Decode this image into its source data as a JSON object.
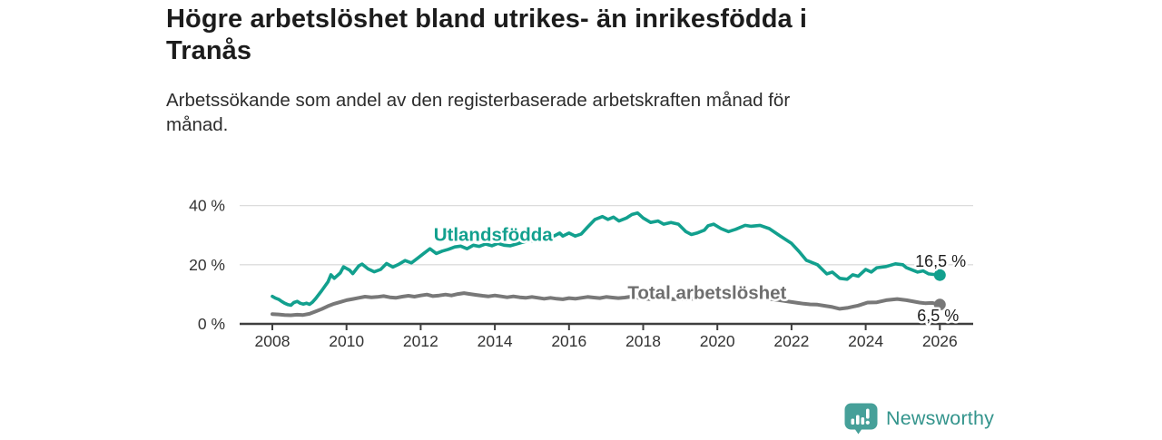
{
  "header": {
    "title_line1": "Högre arbetslöshet bland utrikes- än inrikesfödda i",
    "title_line2": "Tranås",
    "subtitle_line1": "Arbetssökande som andel av den registerbaserade arbetskraften månad för",
    "subtitle_line2": "månad."
  },
  "footer": {
    "logo_text": "Newsworthy",
    "logo_color": "#33948c",
    "logo_icon": "bar-chart-speech-bubble-icon",
    "logo_icon_color": "#46a099"
  },
  "chart_data": {
    "type": "line",
    "title": "Högre arbetslöshet bland utrikes- än inrikesfödda i Tranås",
    "subtitle": "Arbetssökande som andel av den registerbaserade arbetskraften månad för månad.",
    "xlabel": "",
    "ylabel": "",
    "xlim": [
      2007.1,
      2026.9
    ],
    "ylim": [
      0,
      42
    ],
    "grid": "horizontal",
    "x_ticks": [
      2008,
      2010,
      2012,
      2014,
      2016,
      2018,
      2020,
      2022,
      2024,
      2026
    ],
    "y_ticks": [
      {
        "value": 0,
        "label": "0 %"
      },
      {
        "value": 20,
        "label": "20 %"
      },
      {
        "value": 40,
        "label": "40 %"
      }
    ],
    "colors": {
      "grid": "#dcdcdc",
      "axis": "#3f3f3f",
      "tick_label": "#333333",
      "value_label": "#1d1d1d"
    },
    "series": [
      {
        "name": "Total arbetslöshet",
        "color": "#787878",
        "label_color": "#6e6e6e",
        "end_label": "6,5 %",
        "end_value": 6.5,
        "label_anchor": {
          "x": 2017.58,
          "y": 8.4,
          "anchor": "start"
        },
        "end_label_anchor": {
          "x": 2025.95,
          "y": 0.9,
          "anchor": "middle"
        },
        "points": [
          [
            2008.0,
            3.3
          ],
          [
            2008.17,
            3.2
          ],
          [
            2008.33,
            3.0
          ],
          [
            2008.5,
            2.9
          ],
          [
            2008.67,
            3.1
          ],
          [
            2008.83,
            3.0
          ],
          [
            2009.0,
            3.4
          ],
          [
            2009.17,
            4.2
          ],
          [
            2009.33,
            5.0
          ],
          [
            2009.5,
            6.0
          ],
          [
            2009.67,
            6.8
          ],
          [
            2009.83,
            7.4
          ],
          [
            2010.0,
            8.0
          ],
          [
            2010.17,
            8.4
          ],
          [
            2010.33,
            8.8
          ],
          [
            2010.5,
            9.2
          ],
          [
            2010.67,
            9.0
          ],
          [
            2010.83,
            9.1
          ],
          [
            2011.0,
            9.4
          ],
          [
            2011.17,
            9.0
          ],
          [
            2011.33,
            8.8
          ],
          [
            2011.5,
            9.2
          ],
          [
            2011.67,
            9.5
          ],
          [
            2011.83,
            9.2
          ],
          [
            2012.0,
            9.6
          ],
          [
            2012.17,
            9.9
          ],
          [
            2012.33,
            9.4
          ],
          [
            2012.5,
            9.6
          ],
          [
            2012.67,
            9.9
          ],
          [
            2012.83,
            9.6
          ],
          [
            2013.0,
            10.1
          ],
          [
            2013.17,
            10.4
          ],
          [
            2013.33,
            10.1
          ],
          [
            2013.5,
            9.8
          ],
          [
            2013.67,
            9.5
          ],
          [
            2013.83,
            9.3
          ],
          [
            2014.0,
            9.6
          ],
          [
            2014.17,
            9.3
          ],
          [
            2014.33,
            9.0
          ],
          [
            2014.5,
            9.3
          ],
          [
            2014.67,
            9.0
          ],
          [
            2014.83,
            8.8
          ],
          [
            2015.0,
            9.1
          ],
          [
            2015.17,
            8.8
          ],
          [
            2015.33,
            8.5
          ],
          [
            2015.5,
            8.8
          ],
          [
            2015.67,
            8.5
          ],
          [
            2015.83,
            8.3
          ],
          [
            2016.0,
            8.7
          ],
          [
            2016.17,
            8.5
          ],
          [
            2016.33,
            8.8
          ],
          [
            2016.5,
            9.1
          ],
          [
            2016.67,
            8.9
          ],
          [
            2016.83,
            8.7
          ],
          [
            2017.0,
            9.1
          ],
          [
            2017.17,
            8.9
          ],
          [
            2017.33,
            8.7
          ],
          [
            2017.5,
            8.9
          ],
          [
            2017.67,
            9.2
          ],
          [
            2017.83,
            8.9
          ],
          [
            2018.0,
            8.6
          ],
          [
            2018.17,
            8.4
          ],
          [
            2018.33,
            8.6
          ],
          [
            2018.5,
            8.9
          ],
          [
            2018.67,
            8.6
          ],
          [
            2018.83,
            8.3
          ],
          [
            2019.0,
            8.6
          ],
          [
            2019.17,
            8.3
          ],
          [
            2019.33,
            8.5
          ],
          [
            2019.5,
            8.8
          ],
          [
            2019.67,
            9.1
          ],
          [
            2019.83,
            9.5
          ],
          [
            2020.0,
            9.2
          ],
          [
            2020.17,
            9.5
          ],
          [
            2020.33,
            9.8
          ],
          [
            2020.5,
            10.0
          ],
          [
            2020.67,
            9.7
          ],
          [
            2020.83,
            9.5
          ],
          [
            2021.0,
            9.2
          ],
          [
            2021.17,
            8.9
          ],
          [
            2021.33,
            8.6
          ],
          [
            2021.5,
            8.3
          ],
          [
            2021.67,
            8.0
          ],
          [
            2021.83,
            7.7
          ],
          [
            2022.0,
            7.4
          ],
          [
            2022.17,
            7.1
          ],
          [
            2022.33,
            6.8
          ],
          [
            2022.5,
            6.6
          ],
          [
            2022.7,
            6.5
          ],
          [
            2022.9,
            6.1
          ],
          [
            2023.1,
            5.7
          ],
          [
            2023.3,
            5.1
          ],
          [
            2023.5,
            5.4
          ],
          [
            2023.65,
            5.8
          ],
          [
            2023.8,
            6.2
          ],
          [
            2024.05,
            7.2
          ],
          [
            2024.3,
            7.3
          ],
          [
            2024.55,
            8.0
          ],
          [
            2024.85,
            8.4
          ],
          [
            2025.1,
            8.0
          ],
          [
            2025.45,
            7.2
          ],
          [
            2025.6,
            7.0
          ],
          [
            2025.8,
            7.1
          ],
          [
            2026.0,
            6.5
          ]
        ]
      },
      {
        "name": "Utlandsfödda",
        "color": "#12a08e",
        "label_color": "#12a08e",
        "end_label": "16,5 %",
        "end_value": 16.5,
        "label_anchor": {
          "x": 2012.35,
          "y": 28.0,
          "anchor": "start"
        },
        "end_label_anchor": {
          "x": 2026.02,
          "y": 19.3,
          "anchor": "middle"
        },
        "points": [
          [
            2008.0,
            9.3
          ],
          [
            2008.08,
            8.7
          ],
          [
            2008.17,
            8.3
          ],
          [
            2008.25,
            7.6
          ],
          [
            2008.33,
            7.0
          ],
          [
            2008.42,
            6.5
          ],
          [
            2008.5,
            6.3
          ],
          [
            2008.58,
            7.2
          ],
          [
            2008.67,
            7.6
          ],
          [
            2008.75,
            7.0
          ],
          [
            2008.83,
            6.7
          ],
          [
            2008.92,
            7.0
          ],
          [
            2009.0,
            6.6
          ],
          [
            2009.08,
            7.3
          ],
          [
            2009.17,
            8.6
          ],
          [
            2009.33,
            11.2
          ],
          [
            2009.5,
            14.2
          ],
          [
            2009.58,
            16.6
          ],
          [
            2009.67,
            15.4
          ],
          [
            2009.83,
            17.2
          ],
          [
            2009.92,
            19.3
          ],
          [
            2010.08,
            18.2
          ],
          [
            2010.17,
            17.0
          ],
          [
            2010.33,
            19.6
          ],
          [
            2010.42,
            20.2
          ],
          [
            2010.58,
            18.6
          ],
          [
            2010.75,
            17.6
          ],
          [
            2010.92,
            18.4
          ],
          [
            2011.08,
            20.4
          ],
          [
            2011.25,
            19.2
          ],
          [
            2011.42,
            20.2
          ],
          [
            2011.58,
            21.4
          ],
          [
            2011.75,
            20.6
          ],
          [
            2011.92,
            22.2
          ],
          [
            2012.08,
            23.8
          ],
          [
            2012.25,
            25.4
          ],
          [
            2012.42,
            23.8
          ],
          [
            2012.58,
            24.6
          ],
          [
            2012.75,
            25.2
          ],
          [
            2012.92,
            26.0
          ],
          [
            2013.08,
            26.3
          ],
          [
            2013.25,
            25.4
          ],
          [
            2013.42,
            26.6
          ],
          [
            2013.58,
            26.2
          ],
          [
            2013.75,
            27.0
          ],
          [
            2013.92,
            26.4
          ],
          [
            2014.08,
            27.2
          ],
          [
            2014.25,
            26.6
          ],
          [
            2014.42,
            26.4
          ],
          [
            2014.58,
            27.0
          ],
          [
            2014.75,
            27.6
          ],
          [
            2014.92,
            28.2
          ],
          [
            2015.08,
            28.0
          ],
          [
            2015.25,
            28.6
          ],
          [
            2015.42,
            29.0
          ],
          [
            2015.58,
            29.6
          ],
          [
            2015.75,
            30.7
          ],
          [
            2015.83,
            29.7
          ],
          [
            2016.0,
            30.7
          ],
          [
            2016.17,
            29.7
          ],
          [
            2016.33,
            30.4
          ],
          [
            2016.5,
            32.7
          ],
          [
            2016.7,
            35.3
          ],
          [
            2016.9,
            36.3
          ],
          [
            2017.05,
            35.3
          ],
          [
            2017.2,
            36.1
          ],
          [
            2017.35,
            34.8
          ],
          [
            2017.55,
            35.8
          ],
          [
            2017.7,
            37.0
          ],
          [
            2017.85,
            37.5
          ],
          [
            2018.0,
            35.8
          ],
          [
            2018.2,
            34.3
          ],
          [
            2018.4,
            34.8
          ],
          [
            2018.55,
            33.7
          ],
          [
            2018.75,
            34.3
          ],
          [
            2018.95,
            33.7
          ],
          [
            2019.15,
            31.2
          ],
          [
            2019.3,
            30.2
          ],
          [
            2019.45,
            30.7
          ],
          [
            2019.65,
            31.7
          ],
          [
            2019.75,
            33.2
          ],
          [
            2019.9,
            33.7
          ],
          [
            2020.1,
            32.2
          ],
          [
            2020.3,
            31.2
          ],
          [
            2020.5,
            32.0
          ],
          [
            2020.75,
            33.3
          ],
          [
            2020.9,
            33.0
          ],
          [
            2021.15,
            33.3
          ],
          [
            2021.4,
            32.2
          ],
          [
            2021.7,
            29.7
          ],
          [
            2022.0,
            27.2
          ],
          [
            2022.2,
            24.5
          ],
          [
            2022.4,
            21.5
          ],
          [
            2022.7,
            20.0
          ],
          [
            2022.95,
            16.9
          ],
          [
            2023.1,
            17.5
          ],
          [
            2023.3,
            15.4
          ],
          [
            2023.5,
            15.1
          ],
          [
            2023.65,
            16.6
          ],
          [
            2023.8,
            16.1
          ],
          [
            2024.0,
            18.4
          ],
          [
            2024.15,
            17.5
          ],
          [
            2024.3,
            19.0
          ],
          [
            2024.55,
            19.4
          ],
          [
            2024.8,
            20.3
          ],
          [
            2025.0,
            20.0
          ],
          [
            2025.1,
            19.0
          ],
          [
            2025.4,
            17.5
          ],
          [
            2025.55,
            17.9
          ],
          [
            2025.7,
            16.9
          ],
          [
            2025.9,
            16.6
          ],
          [
            2026.0,
            16.5
          ]
        ]
      }
    ]
  }
}
